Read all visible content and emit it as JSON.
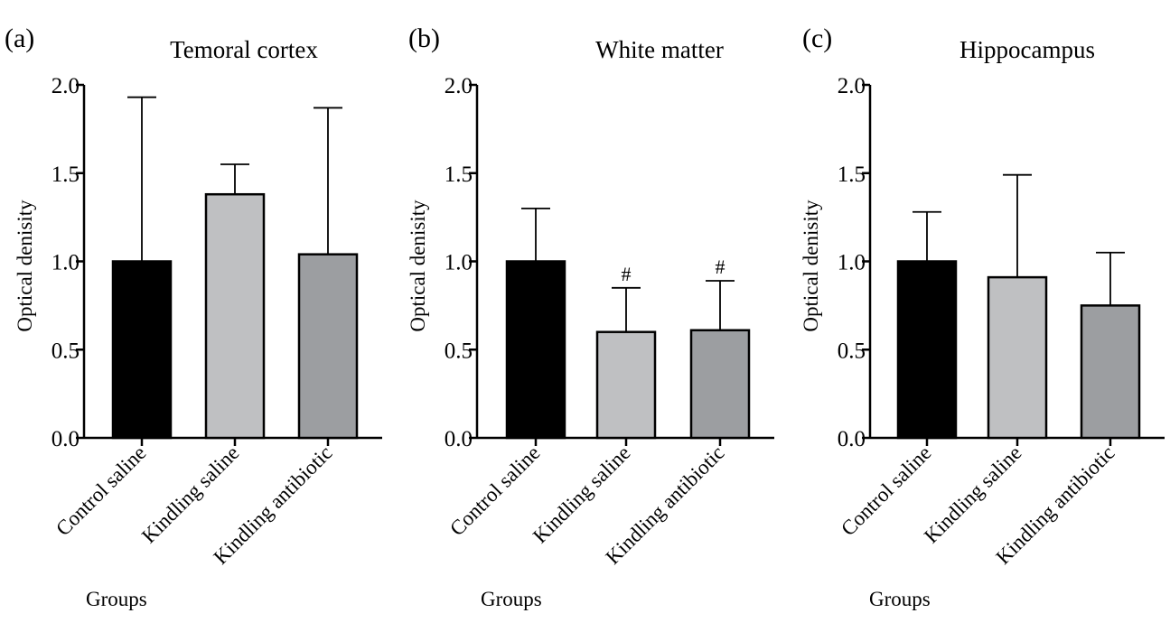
{
  "chart_data": [
    {
      "type": "bar",
      "panel_label": "(a)",
      "title": "Temoral cortex",
      "xlabel": "Groups",
      "ylabel": "Optical denisity",
      "ylim": [
        0,
        2.0
      ],
      "yticks": [
        "0.0",
        "0.5",
        "1.0",
        "1.5",
        "2.0"
      ],
      "categories": [
        "Control saline",
        "Kindling saline",
        "Kindling antibiotic"
      ],
      "values": [
        1.0,
        1.38,
        1.04
      ],
      "error_upper": [
        1.93,
        1.55,
        1.87
      ],
      "annotations": [
        "",
        "",
        ""
      ],
      "colors": [
        "#000000",
        "#bfc0c2",
        "#9c9ea1"
      ]
    },
    {
      "type": "bar",
      "panel_label": "(b)",
      "title": "White matter",
      "xlabel": "Groups",
      "ylabel": "Optical denisity",
      "ylim": [
        0,
        2.0
      ],
      "yticks": [
        "0.0",
        "0.5",
        "1.0",
        "1.5",
        "2.0"
      ],
      "categories": [
        "Control saline",
        "Kindling saline",
        "Kindling antibiotic"
      ],
      "values": [
        1.0,
        0.6,
        0.61
      ],
      "error_upper": [
        1.3,
        0.85,
        0.89
      ],
      "annotations": [
        "",
        "#",
        "#"
      ],
      "colors": [
        "#000000",
        "#bfc0c2",
        "#9c9ea1"
      ]
    },
    {
      "type": "bar",
      "panel_label": "(c)",
      "title": "Hippocampus",
      "xlabel": "Groups",
      "ylabel": "Optical denisity",
      "ylim": [
        0,
        2.0
      ],
      "yticks": [
        "0.0",
        "0.5",
        "1.0",
        "1.5",
        "2.0"
      ],
      "categories": [
        "Control saline",
        "Kindling saline",
        "Kindling antibiotic"
      ],
      "values": [
        1.0,
        0.91,
        0.75
      ],
      "error_upper": [
        1.28,
        1.49,
        1.05
      ],
      "annotations": [
        "",
        "",
        ""
      ],
      "colors": [
        "#000000",
        "#bfc0c2",
        "#9c9ea1"
      ]
    }
  ]
}
